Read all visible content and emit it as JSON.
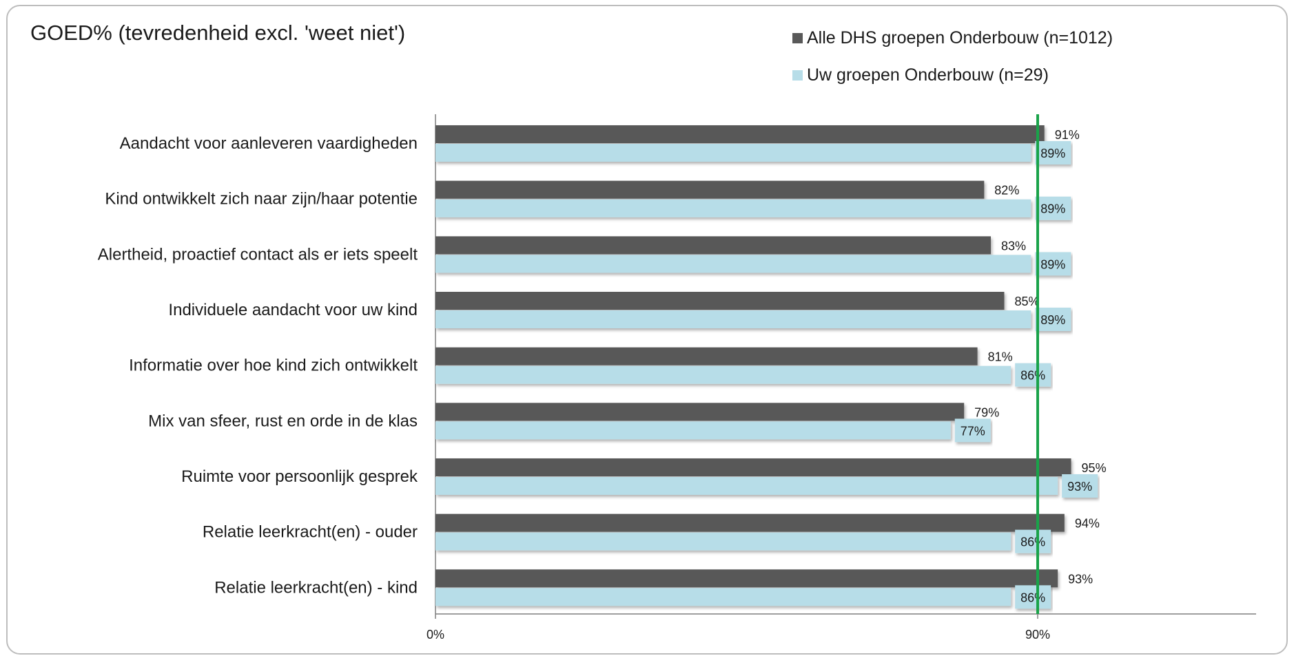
{
  "chart_data": {
    "type": "bar",
    "orientation": "horizontal",
    "title": "GOED% (tevredenheid excl. 'weet niet')",
    "categories": [
      "Aandacht voor aanleveren vaardigheden",
      "Kind ontwikkelt zich naar zijn/haar potentie",
      "Alertheid, proactief contact als er iets speelt",
      "Individuele aandacht voor uw kind",
      "Informatie over hoe kind zich ontwikkelt",
      "Mix van sfeer, rust en orde in de klas",
      "Ruimte voor persoonlijk gesprek",
      "Relatie leerkracht(en) - ouder",
      "Relatie leerkracht(en) - kind"
    ],
    "series": [
      {
        "name": "Alle DHS groepen Onderbouw (n=1012)",
        "color": "#595959",
        "values": [
          91,
          82,
          83,
          85,
          81,
          79,
          95,
          94,
          93
        ],
        "labels": [
          "91%",
          "82%",
          "83%",
          "85%",
          "81%",
          "79%",
          "95%",
          "94%",
          "93%"
        ]
      },
      {
        "name": "Uw groepen Onderbouw (n=29)",
        "color": "#b7dde8",
        "values": [
          89,
          89,
          89,
          89,
          86,
          77,
          93,
          86,
          86
        ],
        "labels": [
          "89%",
          "89%",
          "89%",
          "89%",
          "86%",
          "77%",
          "93%",
          "86%",
          "86%"
        ]
      }
    ],
    "xlim": [
      0,
      100
    ],
    "ticks": [
      {
        "value": 0,
        "label": "0%"
      },
      {
        "value": 90,
        "label": "90%"
      }
    ],
    "reference_line": {
      "value": 90,
      "color": "#1aa34a"
    },
    "grid": false,
    "legend_position": "top-right"
  }
}
